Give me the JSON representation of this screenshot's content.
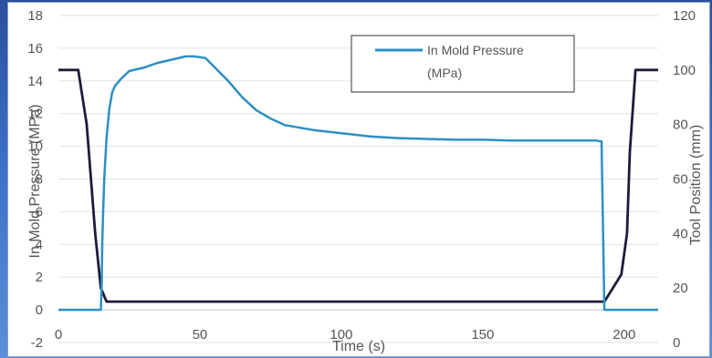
{
  "chart_data": {
    "type": "line",
    "title": "",
    "xlabel": "Time (s)",
    "ylabel": "In Mold Pressure (MPa)",
    "y2label": "Tool Position (mm)",
    "xlim": [
      0,
      212
    ],
    "ylim": [
      -2,
      18
    ],
    "y2lim": [
      0,
      120
    ],
    "x_ticks": [
      0,
      50,
      100,
      150,
      200
    ],
    "y_ticks": [
      -2,
      0,
      2,
      4,
      6,
      8,
      10,
      12,
      14,
      16,
      18
    ],
    "y2_ticks": [
      0,
      20,
      40,
      60,
      80,
      100,
      120
    ],
    "grid": "horizontal",
    "legend": {
      "position": "top-right",
      "entries": [
        "In Mold Pressure (MPa)"
      ]
    },
    "series": [
      {
        "name": "In Mold Pressure (MPa)",
        "axis": "left",
        "color": "#2e8fc4",
        "points": [
          [
            0,
            0
          ],
          [
            15,
            0
          ],
          [
            15.3,
            1.5
          ],
          [
            15.5,
            4
          ],
          [
            15.8,
            6
          ],
          [
            16.2,
            8
          ],
          [
            17,
            10.5
          ],
          [
            18,
            12.3
          ],
          [
            19,
            13.3
          ],
          [
            20,
            13.7
          ],
          [
            22,
            14.1
          ],
          [
            25,
            14.6
          ],
          [
            30,
            14.8
          ],
          [
            35,
            15.1
          ],
          [
            40,
            15.3
          ],
          [
            45,
            15.5
          ],
          [
            48,
            15.5
          ],
          [
            52,
            15.4
          ],
          [
            56,
            14.7
          ],
          [
            60,
            14.0
          ],
          [
            65,
            13.0
          ],
          [
            70,
            12.2
          ],
          [
            75,
            11.7
          ],
          [
            80,
            11.3
          ],
          [
            90,
            11.0
          ],
          [
            100,
            10.8
          ],
          [
            110,
            10.6
          ],
          [
            120,
            10.5
          ],
          [
            130,
            10.45
          ],
          [
            140,
            10.4
          ],
          [
            150,
            10.4
          ],
          [
            160,
            10.35
          ],
          [
            170,
            10.35
          ],
          [
            180,
            10.35
          ],
          [
            190,
            10.35
          ],
          [
            192,
            10.3
          ],
          [
            193,
            0
          ],
          [
            212,
            0
          ]
        ]
      },
      {
        "name": "",
        "axis": "right",
        "color": "#1e1b3c",
        "points": [
          [
            0,
            100
          ],
          [
            7,
            100
          ],
          [
            10,
            80
          ],
          [
            13,
            40
          ],
          [
            15,
            20
          ],
          [
            17,
            15
          ],
          [
            190,
            15
          ],
          [
            193,
            15
          ],
          [
            196,
            20
          ],
          [
            199,
            25
          ],
          [
            201,
            40
          ],
          [
            202,
            70
          ],
          [
            204,
            100
          ],
          [
            212,
            100
          ]
        ]
      }
    ]
  }
}
